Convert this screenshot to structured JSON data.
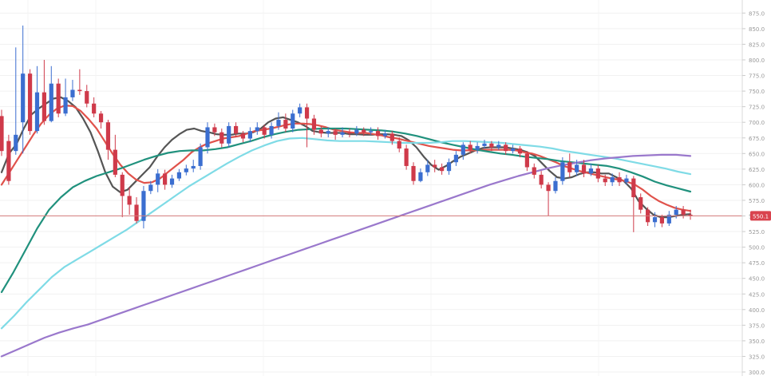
{
  "chart_data": {
    "type": "candlestick",
    "title": "",
    "xlabel": "",
    "ylabel": "",
    "ylim": [
      300,
      890
    ],
    "grid": true,
    "legend": "none",
    "colors": {
      "up_candle": "#3b6ed0",
      "down_candle": "#cf3a4a",
      "axis_text": "#999999",
      "price_line": "#d47a7a",
      "price_tag": "#d9434e"
    },
    "y_ticks": [
      "875.0",
      "850.0",
      "825.0",
      "800.0",
      "775.0",
      "750.0",
      "725.0",
      "700.0",
      "675.0",
      "650.0",
      "625.0",
      "600.0",
      "575.0",
      "550.0",
      "525.0",
      "500.0",
      "475.0",
      "450.0",
      "425.0",
      "400.0",
      "375.0",
      "350.0",
      "325.0",
      "300.0"
    ],
    "current_price": "550.1",
    "candles": [
      [
        710,
        654,
        646,
        720
      ],
      [
        670,
        606,
        600,
        680
      ],
      [
        654,
        680,
        648,
        820
      ],
      [
        700,
        778,
        650,
        855
      ],
      [
        778,
        686,
        680,
        785
      ],
      [
        686,
        748,
        682,
        790
      ],
      [
        748,
        702,
        696,
        800
      ],
      [
        702,
        762,
        700,
        790
      ],
      [
        762,
        714,
        708,
        770
      ],
      [
        714,
        740,
        710,
        770
      ],
      [
        740,
        752,
        734,
        768
      ],
      [
        752,
        750,
        744,
        785
      ],
      [
        750,
        730,
        724,
        760
      ],
      [
        730,
        714,
        708,
        740
      ],
      [
        714,
        700,
        690,
        718
      ],
      [
        700,
        656,
        640,
        704
      ],
      [
        656,
        616,
        612,
        680
      ],
      [
        616,
        582,
        548,
        620
      ],
      [
        582,
        568,
        552,
        596
      ],
      [
        568,
        542,
        538,
        580
      ],
      [
        542,
        590,
        530,
        598
      ],
      [
        590,
        600,
        585,
        606
      ],
      [
        600,
        618,
        588,
        625
      ],
      [
        618,
        600,
        592,
        624
      ],
      [
        600,
        610,
        595,
        616
      ],
      [
        610,
        620,
        606,
        625
      ],
      [
        620,
        626,
        615,
        632
      ],
      [
        626,
        630,
        620,
        640
      ],
      [
        630,
        660,
        624,
        666
      ],
      [
        660,
        692,
        650,
        700
      ],
      [
        692,
        684,
        678,
        698
      ],
      [
        684,
        666,
        660,
        690
      ],
      [
        666,
        694,
        660,
        700
      ],
      [
        694,
        682,
        676,
        700
      ],
      [
        682,
        674,
        668,
        686
      ],
      [
        674,
        686,
        668,
        692
      ],
      [
        686,
        692,
        680,
        700
      ],
      [
        692,
        680,
        674,
        696
      ],
      [
        680,
        694,
        674,
        700
      ],
      [
        694,
        704,
        688,
        716
      ],
      [
        704,
        690,
        684,
        714
      ],
      [
        690,
        714,
        684,
        720
      ],
      [
        714,
        724,
        708,
        730
      ],
      [
        724,
        706,
        660,
        730
      ],
      [
        706,
        688,
        680,
        712
      ],
      [
        688,
        682,
        676,
        694
      ],
      [
        682,
        686,
        676,
        692
      ],
      [
        686,
        680,
        672,
        690
      ],
      [
        680,
        684,
        676,
        692
      ],
      [
        684,
        682,
        676,
        690
      ],
      [
        682,
        688,
        678,
        694
      ],
      [
        688,
        684,
        678,
        692
      ],
      [
        684,
        686,
        680,
        692
      ],
      [
        686,
        678,
        672,
        692
      ],
      [
        678,
        682,
        674,
        688
      ],
      [
        682,
        670,
        664,
        686
      ],
      [
        670,
        658,
        652,
        676
      ],
      [
        658,
        630,
        624,
        664
      ],
      [
        630,
        606,
        600,
        636
      ],
      [
        606,
        620,
        604,
        626
      ],
      [
        620,
        632,
        614,
        640
      ],
      [
        632,
        628,
        620,
        640
      ],
      [
        628,
        622,
        616,
        634
      ],
      [
        622,
        636,
        616,
        642
      ],
      [
        636,
        648,
        630,
        654
      ],
      [
        648,
        664,
        640,
        668
      ],
      [
        664,
        656,
        650,
        670
      ],
      [
        656,
        662,
        650,
        668
      ],
      [
        662,
        666,
        658,
        672
      ],
      [
        666,
        660,
        654,
        670
      ],
      [
        660,
        664,
        656,
        670
      ],
      [
        664,
        654,
        648,
        668
      ],
      [
        654,
        658,
        650,
        664
      ],
      [
        658,
        650,
        644,
        662
      ],
      [
        650,
        628,
        622,
        654
      ],
      [
        628,
        616,
        610,
        634
      ],
      [
        616,
        600,
        594,
        622
      ],
      [
        600,
        590,
        550,
        604
      ],
      [
        590,
        606,
        586,
        612
      ],
      [
        606,
        636,
        600,
        644
      ],
      [
        636,
        620,
        612,
        650
      ],
      [
        620,
        632,
        614,
        640
      ],
      [
        632,
        618,
        612,
        640
      ],
      [
        618,
        626,
        614,
        634
      ],
      [
        626,
        610,
        604,
        632
      ],
      [
        610,
        604,
        598,
        616
      ],
      [
        604,
        612,
        598,
        618
      ],
      [
        612,
        604,
        598,
        620
      ],
      [
        604,
        610,
        600,
        616
      ],
      [
        610,
        580,
        524,
        614
      ],
      [
        580,
        560,
        554,
        586
      ],
      [
        560,
        540,
        534,
        564
      ],
      [
        540,
        548,
        532,
        556
      ],
      [
        548,
        538,
        532,
        552
      ],
      [
        538,
        552,
        534,
        558
      ],
      [
        552,
        560,
        546,
        566
      ],
      [
        560,
        552,
        546,
        566
      ],
      [
        552,
        550,
        544,
        560
      ]
    ],
    "series": [
      {
        "color": "#555555",
        "values": [
          620,
          650,
          665,
          690,
          712,
          722,
          730,
          738,
          740,
          734,
          724,
          706,
          684,
          654,
          620,
          597,
          588,
          592,
          604,
          616,
          628,
          645,
          660,
          672,
          681,
          688,
          690,
          686,
          684,
          681,
          680,
          680,
          682,
          682,
          684,
          690,
          700,
          706,
          708,
          704,
          700,
          694,
          686,
          684,
          683,
          683,
          683,
          681,
          681,
          680,
          680,
          681,
          681,
          680,
          678,
          671,
          660,
          645,
          632,
          624,
          630,
          638,
          645,
          650,
          655,
          659,
          660,
          660,
          660,
          658,
          656,
          652,
          646,
          634,
          622,
          612,
          610,
          612,
          617,
          620,
          620,
          618,
          618,
          612,
          606,
          594,
          574,
          562,
          552,
          548,
          548,
          550,
          552,
          553
        ]
      },
      {
        "color": "#e0524b",
        "values": [
          600,
          620,
          640,
          660,
          680,
          698,
          712,
          722,
          727,
          726,
          718,
          705,
          690,
          670,
          650,
          632,
          618,
          608,
          603,
          604,
          610,
          620,
          630,
          640,
          652,
          660,
          666,
          670,
          674,
          676,
          678,
          682,
          686,
          688,
          690,
          693,
          696,
          698,
          698,
          697,
          695,
          692,
          688,
          686,
          684,
          683,
          683,
          681,
          679,
          676,
          674,
          671,
          668,
          665,
          662,
          660,
          658,
          656,
          655,
          655,
          655,
          656,
          656,
          656,
          656,
          655,
          652,
          650,
          646,
          641,
          636,
          630,
          626,
          622,
          619,
          616,
          613,
          610,
          608,
          605,
          600,
          592,
          582,
          574,
          568,
          563,
          560,
          558
        ]
      },
      {
        "color": "#20917d",
        "values": [
          428,
          460,
          495,
          530,
          560,
          580,
          596,
          606,
          614,
          620,
          626,
          633,
          640,
          646,
          651,
          654,
          655,
          655,
          657,
          660,
          665,
          670,
          676,
          681,
          685,
          688,
          689,
          690,
          690,
          690,
          689,
          688,
          687,
          685,
          682,
          678,
          673,
          668,
          664,
          660,
          656,
          653,
          650,
          648,
          645,
          643,
          641,
          638,
          636,
          634,
          632,
          630,
          626,
          620,
          613,
          605,
          599,
          594,
          589
        ]
      },
      {
        "color": "#7fdbe6",
        "values": [
          370,
          390,
          412,
          432,
          452,
          468,
          480,
          492,
          504,
          516,
          528,
          542,
          556,
          570,
          584,
          598,
          610,
          622,
          634,
          645,
          655,
          663,
          670,
          674,
          675,
          673,
          671,
          670,
          670,
          670,
          669,
          668,
          667,
          667,
          667,
          668,
          670,
          670,
          669,
          668,
          667,
          665,
          663,
          661,
          658,
          654,
          651,
          648,
          645,
          642,
          638,
          634,
          630,
          626,
          621,
          617
        ]
      },
      {
        "color": "#9a78cc",
        "values": [
          325,
          335,
          345,
          355,
          363,
          370,
          376,
          384,
          392,
          400,
          408,
          416,
          424,
          432,
          440,
          448,
          456,
          464,
          472,
          480,
          488,
          496,
          504,
          512,
          520,
          528,
          536,
          544,
          552,
          560,
          568,
          576,
          584,
          592,
          600,
          607,
          614,
          620,
          626,
          631,
          635,
          639,
          642,
          644,
          646,
          647,
          648,
          648,
          646
        ]
      }
    ]
  }
}
